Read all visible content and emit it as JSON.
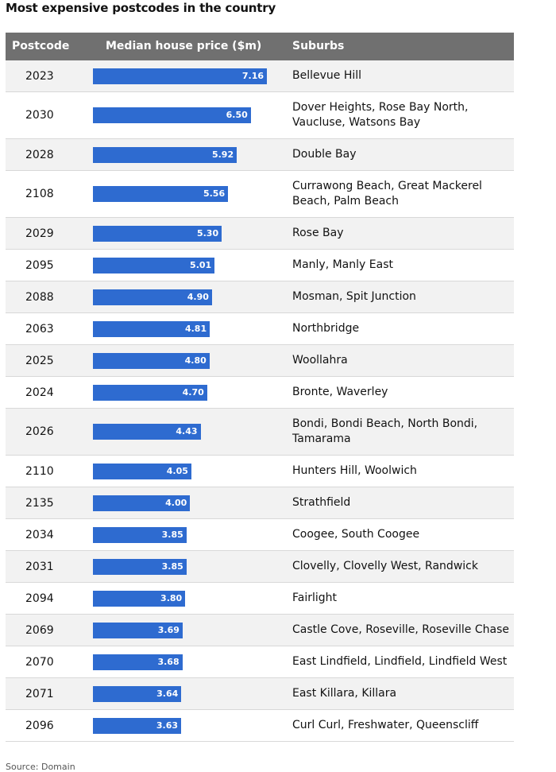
{
  "title": "Most expensive postcodes in the country",
  "source": "Source: Domain",
  "header": {
    "postcode": "Postcode",
    "price": "Median house price ($m)",
    "suburbs": "Suburbs"
  },
  "colors": {
    "bar": "#2e6bd0",
    "header_bg": "#707070",
    "row_alt": "#f2f2f2"
  },
  "chart_data": {
    "type": "table",
    "title": "Most expensive postcodes in the country",
    "columns": [
      "Postcode",
      "Median house price ($m)",
      "Suburbs"
    ],
    "xlim": [
      0,
      7.16
    ],
    "rows": [
      {
        "postcode": "2023",
        "value": 7.16,
        "label": "7.16",
        "suburbs": "Bellevue Hill"
      },
      {
        "postcode": "2030",
        "value": 6.5,
        "label": "6.50",
        "suburbs": "Dover Heights, Rose Bay North, Vaucluse, Watsons Bay"
      },
      {
        "postcode": "2028",
        "value": 5.92,
        "label": "5.92",
        "suburbs": "Double Bay"
      },
      {
        "postcode": "2108",
        "value": 5.56,
        "label": "5.56",
        "suburbs": "Currawong Beach, Great Mackerel Beach, Palm Beach"
      },
      {
        "postcode": "2029",
        "value": 5.3,
        "label": "5.30",
        "suburbs": "Rose Bay"
      },
      {
        "postcode": "2095",
        "value": 5.01,
        "label": "5.01",
        "suburbs": "Manly, Manly East"
      },
      {
        "postcode": "2088",
        "value": 4.9,
        "label": "4.90",
        "suburbs": "Mosman, Spit Junction"
      },
      {
        "postcode": "2063",
        "value": 4.81,
        "label": "4.81",
        "suburbs": "Northbridge"
      },
      {
        "postcode": "2025",
        "value": 4.8,
        "label": "4.80",
        "suburbs": "Woollahra"
      },
      {
        "postcode": "2024",
        "value": 4.7,
        "label": "4.70",
        "suburbs": "Bronte, Waverley"
      },
      {
        "postcode": "2026",
        "value": 4.43,
        "label": "4.43",
        "suburbs": "Bondi, Bondi Beach, North Bondi, Tamarama"
      },
      {
        "postcode": "2110",
        "value": 4.05,
        "label": "4.05",
        "suburbs": "Hunters Hill, Woolwich"
      },
      {
        "postcode": "2135",
        "value": 4.0,
        "label": "4.00",
        "suburbs": "Strathfield"
      },
      {
        "postcode": "2034",
        "value": 3.85,
        "label": "3.85",
        "suburbs": "Coogee, South Coogee"
      },
      {
        "postcode": "2031",
        "value": 3.85,
        "label": "3.85",
        "suburbs": "Clovelly, Clovelly West, Randwick"
      },
      {
        "postcode": "2094",
        "value": 3.8,
        "label": "3.80",
        "suburbs": "Fairlight"
      },
      {
        "postcode": "2069",
        "value": 3.69,
        "label": "3.69",
        "suburbs": "Castle Cove, Roseville, Roseville Chase"
      },
      {
        "postcode": "2070",
        "value": 3.68,
        "label": "3.68",
        "suburbs": "East Lindfield, Lindfield, Lindfield West"
      },
      {
        "postcode": "2071",
        "value": 3.64,
        "label": "3.64",
        "suburbs": "East Killara, Killara"
      },
      {
        "postcode": "2096",
        "value": 3.63,
        "label": "3.63",
        "suburbs": "Curl Curl, Freshwater, Queenscliff"
      }
    ]
  }
}
